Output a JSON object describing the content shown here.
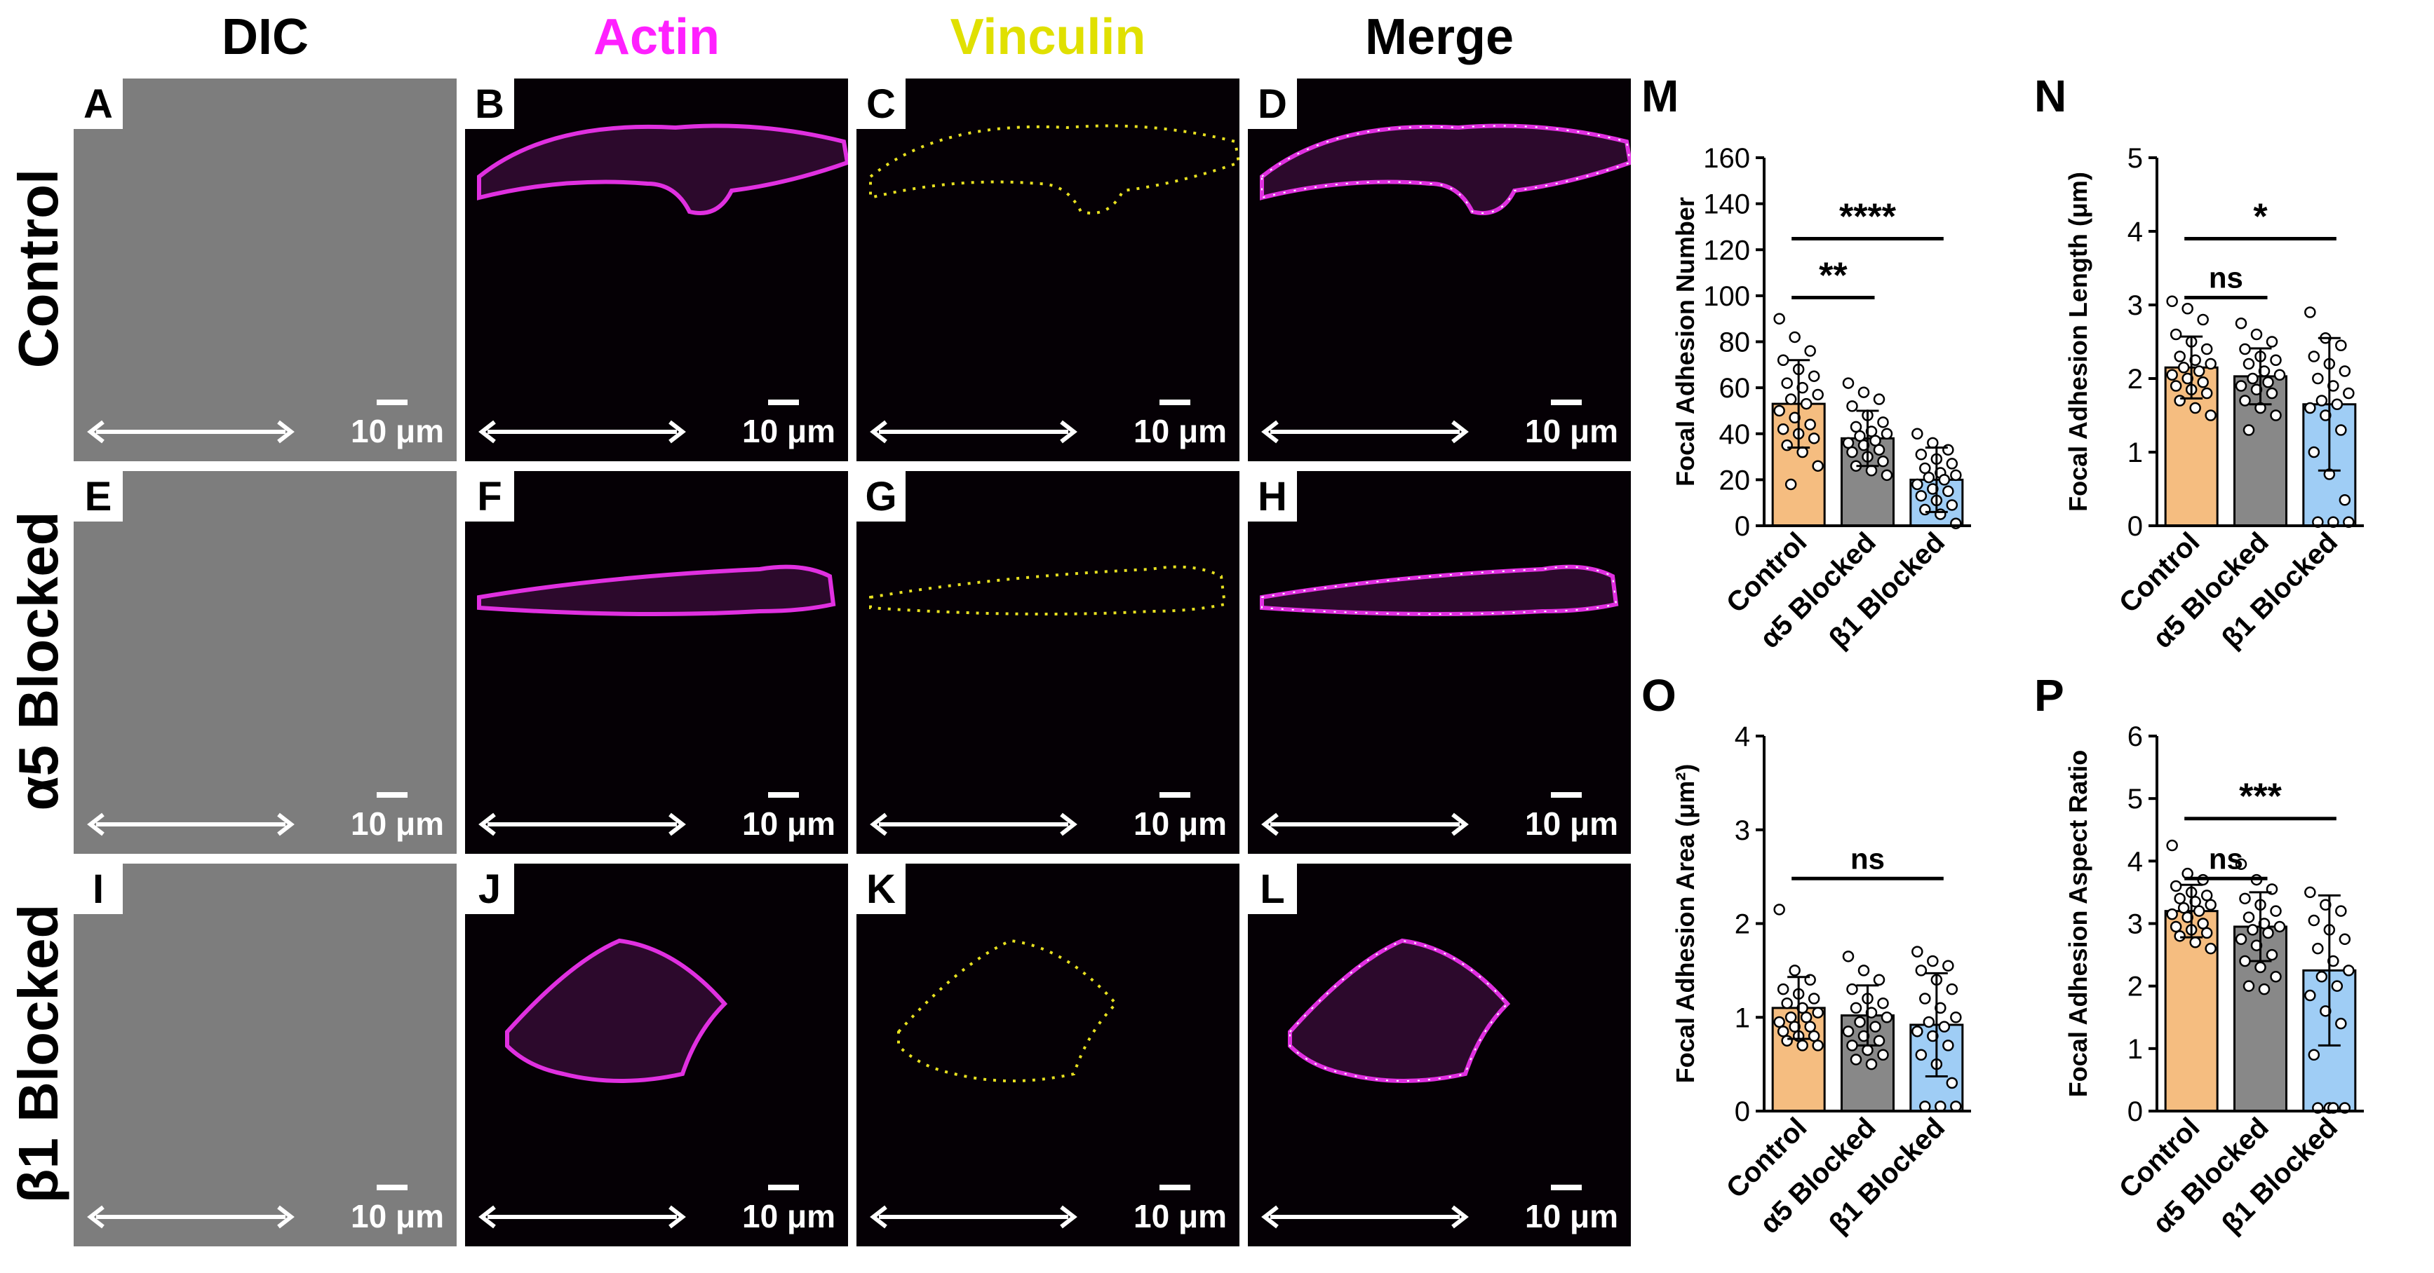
{
  "columns": [
    "DIC",
    "Actin",
    "Vinculin",
    "Merge"
  ],
  "column_colors": [
    "#000000",
    "#ff20ff",
    "#e0e000",
    "#000000"
  ],
  "rows": [
    "Control",
    "α5 Blocked",
    "β1 Blocked"
  ],
  "panel_letters": [
    "A",
    "B",
    "C",
    "D",
    "E",
    "F",
    "G",
    "H",
    "I",
    "J",
    "K",
    "L"
  ],
  "scale_label": "10 μm",
  "stain_colors": {
    "actin": "#e030e0",
    "vinculin": "#e8e020",
    "dic": "#7d7d7d"
  },
  "chart_data": [
    {
      "type": "bar",
      "panel": "M",
      "ylabel": "Focal Adhesion Number",
      "ylim": [
        0,
        160
      ],
      "yticks": [
        0,
        20,
        40,
        60,
        80,
        100,
        120,
        140,
        160
      ],
      "categories": [
        "Control",
        "α5 Blocked",
        "β1 Blocked"
      ],
      "colors": [
        "#f5bd80",
        "#888888",
        "#9fcdf5"
      ],
      "values": [
        53,
        38,
        20
      ],
      "errors": [
        19,
        12,
        14
      ],
      "points": [
        [
          90,
          82,
          76,
          72,
          68,
          65,
          62,
          60,
          57,
          55,
          53,
          50,
          47,
          44,
          42,
          40,
          38,
          35,
          32,
          26,
          18
        ],
        [
          62,
          58,
          55,
          52,
          48,
          45,
          43,
          41,
          40,
          39,
          37,
          36,
          35,
          33,
          32,
          30,
          28,
          26,
          24,
          22
        ],
        [
          40,
          36,
          33,
          31,
          29,
          27,
          25,
          23,
          22,
          21,
          20,
          18,
          16,
          15,
          13,
          11,
          9,
          7,
          5,
          1
        ]
      ],
      "significance": [
        {
          "from": 0,
          "to": 1,
          "label": "**"
        },
        {
          "from": 0,
          "to": 2,
          "label": "****"
        }
      ]
    },
    {
      "type": "bar",
      "panel": "N",
      "ylabel": "Focal Adhesion Length (μm)",
      "ylim": [
        0,
        5
      ],
      "yticks": [
        0,
        1,
        2,
        3,
        4,
        5
      ],
      "categories": [
        "Control",
        "α5 Blocked",
        "β1 Blocked"
      ],
      "colors": [
        "#f5bd80",
        "#888888",
        "#9fcdf5"
      ],
      "values": [
        2.15,
        2.03,
        1.65
      ],
      "errors": [
        0.42,
        0.38,
        0.9
      ],
      "points": [
        [
          3.05,
          2.95,
          2.8,
          2.6,
          2.5,
          2.4,
          2.3,
          2.25,
          2.2,
          2.15,
          2.1,
          2.05,
          2.0,
          1.95,
          1.9,
          1.85,
          1.8,
          1.7,
          1.6,
          1.5
        ],
        [
          2.75,
          2.6,
          2.5,
          2.4,
          2.3,
          2.25,
          2.2,
          2.1,
          2.05,
          2.0,
          1.95,
          1.9,
          1.85,
          1.8,
          1.7,
          1.6,
          1.5,
          1.3
        ],
        [
          2.9,
          2.55,
          2.45,
          2.3,
          2.2,
          2.1,
          2.0,
          1.9,
          1.8,
          1.7,
          1.65,
          1.6,
          1.5,
          1.3,
          1.0,
          0.7,
          0.35,
          0.05,
          0.05,
          0.05
        ]
      ],
      "significance": [
        {
          "from": 0,
          "to": 1,
          "label": "ns"
        },
        {
          "from": 0,
          "to": 2,
          "label": "*"
        }
      ]
    },
    {
      "type": "bar",
      "panel": "O",
      "ylabel": "Focal Adhesion Area (μm²)",
      "ylim": [
        0,
        4
      ],
      "yticks": [
        0,
        1,
        2,
        3,
        4
      ],
      "categories": [
        "Control",
        "α5 Blocked",
        "β1 Blocked"
      ],
      "colors": [
        "#f5bd80",
        "#888888",
        "#9fcdf5"
      ],
      "values": [
        1.1,
        1.02,
        0.92
      ],
      "errors": [
        0.33,
        0.32,
        0.55
      ],
      "points": [
        [
          2.15,
          1.5,
          1.4,
          1.3,
          1.25,
          1.2,
          1.15,
          1.1,
          1.05,
          1.0,
          1.0,
          0.95,
          0.9,
          0.9,
          0.85,
          0.8,
          0.8,
          0.75,
          0.7,
          0.7
        ],
        [
          1.65,
          1.5,
          1.4,
          1.3,
          1.2,
          1.15,
          1.1,
          1.05,
          1.0,
          0.95,
          0.9,
          0.85,
          0.8,
          0.75,
          0.7,
          0.65,
          0.6,
          0.55,
          0.5
        ],
        [
          1.7,
          1.6,
          1.55,
          1.5,
          1.4,
          1.3,
          1.2,
          1.1,
          1.0,
          0.95,
          0.9,
          0.85,
          0.8,
          0.7,
          0.6,
          0.5,
          0.3,
          0.05,
          0.05,
          0.05
        ]
      ],
      "significance": [
        {
          "from": 0,
          "to": 2,
          "label": "ns"
        }
      ]
    },
    {
      "type": "bar",
      "panel": "P",
      "ylabel": "Focal Adhesion Aspect Ratio",
      "ylim": [
        0,
        6
      ],
      "yticks": [
        0,
        1,
        2,
        3,
        4,
        5,
        6
      ],
      "categories": [
        "Control",
        "α5 Blocked",
        "β1 Blocked"
      ],
      "colors": [
        "#f5bd80",
        "#888888",
        "#9fcdf5"
      ],
      "values": [
        3.2,
        2.95,
        2.25
      ],
      "errors": [
        0.42,
        0.55,
        1.2
      ],
      "points": [
        [
          4.25,
          3.8,
          3.7,
          3.6,
          3.5,
          3.45,
          3.4,
          3.35,
          3.3,
          3.25,
          3.2,
          3.15,
          3.1,
          3.0,
          2.95,
          2.9,
          2.85,
          2.8,
          2.7,
          2.6
        ],
        [
          3.95,
          3.7,
          3.55,
          3.4,
          3.3,
          3.2,
          3.1,
          3.0,
          2.95,
          2.9,
          2.85,
          2.75,
          2.65,
          2.5,
          2.4,
          2.3,
          2.15,
          2.0,
          1.95
        ],
        [
          3.5,
          3.3,
          3.2,
          3.05,
          2.9,
          2.75,
          2.6,
          2.4,
          2.25,
          2.15,
          2.0,
          1.85,
          1.6,
          1.4,
          0.9,
          0.05,
          0.05,
          0.05,
          0.05
        ]
      ],
      "significance": [
        {
          "from": 0,
          "to": 1,
          "label": "ns"
        },
        {
          "from": 0,
          "to": 2,
          "label": "***"
        }
      ]
    }
  ]
}
